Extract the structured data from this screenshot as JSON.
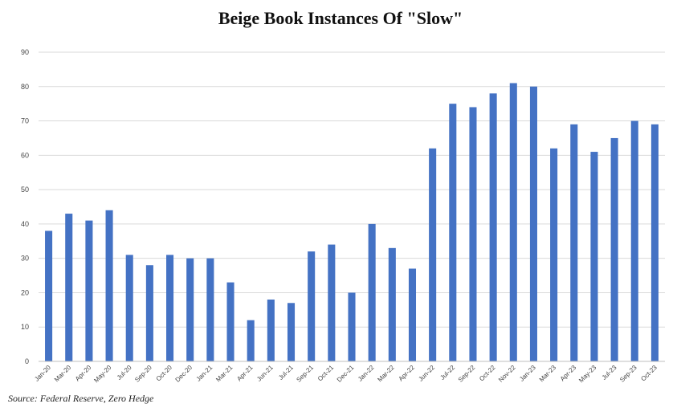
{
  "chart_data": {
    "type": "bar",
    "title": "Beige Book Instances Of  \"Slow\"",
    "source": "Source: Federal Reserve, Zero Hedge",
    "bar_color": "#4472c4",
    "grid": true,
    "ylim": [
      0,
      90
    ],
    "yticks": [
      0,
      10,
      20,
      30,
      40,
      50,
      60,
      70,
      80,
      90
    ],
    "categories": [
      "Jan-20",
      "Mar-20",
      "Apr-20",
      "May-20",
      "Jul-20",
      "Sep-20",
      "Oct-20",
      "Dec-20",
      "Jan-21",
      "Mar-21",
      "Apr-21",
      "Jun-21",
      "Jul-21",
      "Sep-21",
      "Oct-21",
      "Dec-21",
      "Jan-22",
      "Mar-22",
      "Apr-22",
      "Jun-22",
      "Jul-22",
      "Sep-22",
      "Oct-22",
      "Nov-22",
      "Jan-23",
      "Mar-23",
      "Apr-23",
      "May-23",
      "Jul-23",
      "Sep-23",
      "Oct-23"
    ],
    "values": [
      38,
      43,
      41,
      44,
      31,
      28,
      31,
      30,
      30,
      23,
      12,
      18,
      17,
      32,
      34,
      20,
      40,
      33,
      27,
      62,
      75,
      74,
      78,
      81,
      80,
      62,
      69,
      61,
      65,
      70,
      69
    ]
  }
}
